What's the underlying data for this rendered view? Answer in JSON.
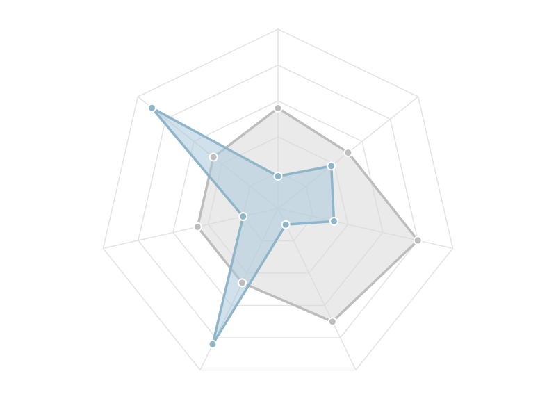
{
  "chart_data": {
    "type": "radar",
    "axes_count": 7,
    "rlim": [
      0,
      5
    ],
    "grid_levels": [
      1,
      2,
      3,
      4,
      5
    ],
    "grid": true,
    "legend": "none",
    "series": [
      {
        "color": "#bdbdbd",
        "fill_color": "#d9d9d9",
        "values": [
          2.8,
          2.5,
          4.0,
          3.5,
          2.3,
          2.3,
          2.3
        ]
      },
      {
        "color": "#8fb5c9",
        "fill_color": "#a9c8da",
        "values": [
          0.9,
          1.9,
          1.6,
          0.5,
          4.2,
          1.0,
          4.5
        ]
      }
    ]
  }
}
